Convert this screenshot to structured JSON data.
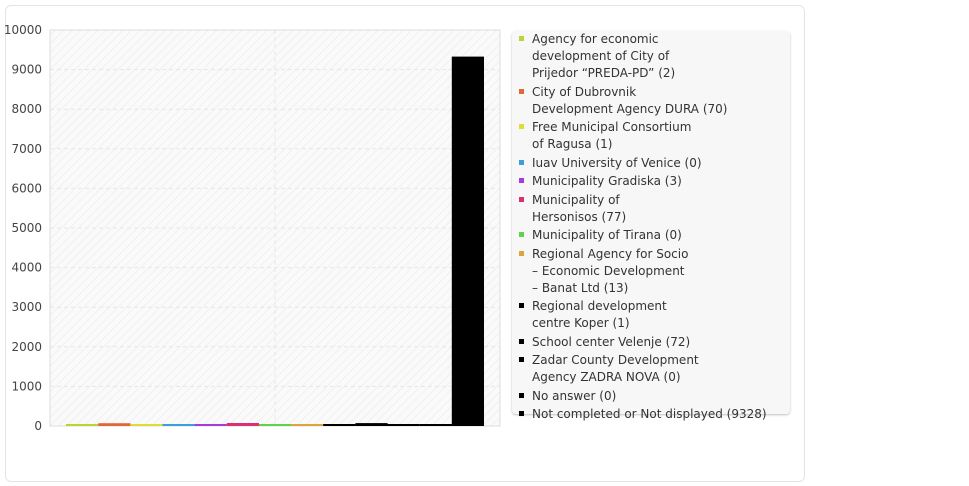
{
  "chart_data": {
    "type": "bar",
    "title": "",
    "xlabel": "",
    "ylabel": "",
    "ylim": [
      0,
      10000
    ],
    "yticks": [
      0,
      1000,
      2000,
      3000,
      4000,
      5000,
      6000,
      7000,
      8000,
      9000,
      10000
    ],
    "grid": true,
    "legend_position": "right",
    "categories": [
      "Agency for economic development of City of Prijedor “PREDA-PD”",
      "City of Dubrovnik Development Agency DURA",
      "Free Municipal Consortium of Ragusa",
      "Iuav University of Venice",
      "Municipality Gradiska",
      "Municipality of Hersonisos",
      "Municipality of Tirana",
      "Regional Agency for Socio – Economic Development – Banat Ltd",
      "Regional development centre Koper",
      "School center Velenje",
      "Zadar County Development Agency ZADRA NOVA",
      "No answer",
      "Not completed or Not displayed"
    ],
    "values": [
      2,
      70,
      1,
      0,
      3,
      77,
      0,
      13,
      1,
      72,
      0,
      0,
      9328
    ],
    "colors": [
      "#b9d534",
      "#e0673a",
      "#dfdd35",
      "#3b9fdc",
      "#a83adb",
      "#db2f74",
      "#5dd34a",
      "#dba73a",
      "#000000",
      "#000000",
      "#000000",
      "#000000",
      "#000000"
    ]
  },
  "legend": {
    "items": [
      {
        "lines": [
          "Agency for economic",
          "development of City of",
          "Prijedor “PREDA-PD” (2)"
        ]
      },
      {
        "lines": [
          "City of Dubrovnik",
          "Development Agency DURA (70)"
        ]
      },
      {
        "lines": [
          "Free Municipal Consortium",
          "of Ragusa (1)"
        ]
      },
      {
        "lines": [
          "Iuav University of Venice (0)"
        ]
      },
      {
        "lines": [
          "Municipality Gradiska (3)"
        ]
      },
      {
        "lines": [
          "Municipality of",
          "Hersonisos (77)"
        ]
      },
      {
        "lines": [
          "Municipality of Tirana (0)"
        ]
      },
      {
        "lines": [
          "Regional Agency for Socio",
          "– Economic Development",
          "– Banat Ltd (13)"
        ]
      },
      {
        "lines": [
          "Regional development",
          "centre Koper (1)"
        ]
      },
      {
        "lines": [
          "School center Velenje (72)"
        ]
      },
      {
        "lines": [
          "Zadar County Development",
          "Agency ZADRA NOVA (0)"
        ]
      },
      {
        "lines": [
          "No answer (0)"
        ]
      },
      {
        "lines": [
          "Not completed or Not displayed (9328)"
        ]
      }
    ]
  }
}
